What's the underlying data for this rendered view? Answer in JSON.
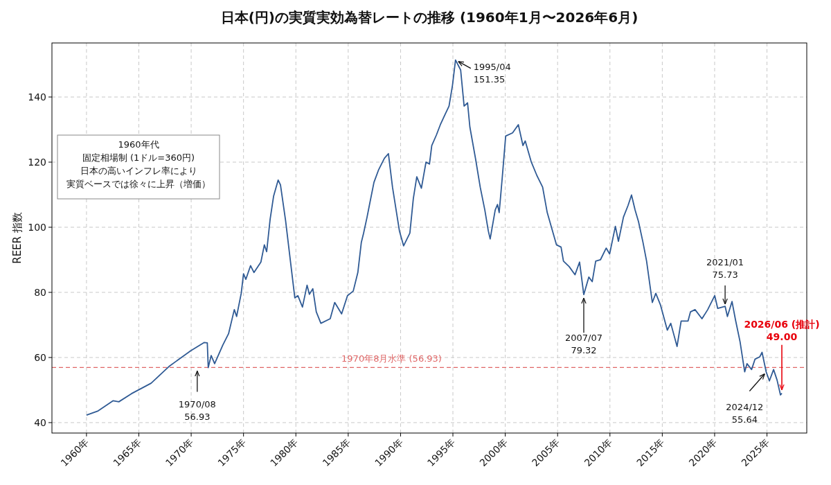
{
  "chart_data": {
    "type": "line",
    "title": "日本(円)の実質実効為替レートの推移 (1960年1月〜2026年6月)",
    "ylabel": "REER 指数",
    "x": [
      1960.0,
      1961.11,
      1962.53,
      1963.09,
      1964.3,
      1966.17,
      1967.94,
      1969.93,
      1971.25,
      1971.54,
      1971.63,
      1971.91,
      1972.24,
      1973.02,
      1973.57,
      1974.12,
      1974.34,
      1974.78,
      1975.0,
      1975.22,
      1975.67,
      1976.0,
      1976.66,
      1976.99,
      1977.21,
      1977.54,
      1977.87,
      1978.31,
      1978.53,
      1979.02,
      1979.45,
      1979.9,
      1980.19,
      1980.63,
      1981.07,
      1981.29,
      1981.62,
      1981.95,
      1982.39,
      1983.28,
      1983.71,
      1984.37,
      1984.93,
      1985.48,
      1985.92,
      1986.25,
      1986.47,
      1986.8,
      1987.02,
      1987.46,
      1987.91,
      1988.46,
      1988.84,
      1989.23,
      1989.89,
      1990.29,
      1990.89,
      1991.22,
      1991.55,
      1991.99,
      1992.43,
      1992.76,
      1992.98,
      1993.42,
      1993.8,
      1994.3,
      1994.63,
      1994.96,
      1995.25,
      1995.74,
      1996.07,
      1996.4,
      1996.62,
      1997.17,
      1997.61,
      1998.05,
      1998.38,
      1998.56,
      1999.04,
      1999.26,
      1999.42,
      1999.71,
      2000.04,
      2000.7,
      2001.25,
      2001.69,
      2001.91,
      2002.47,
      2003.02,
      2003.57,
      2004.01,
      2004.89,
      2005.33,
      2005.56,
      2006.11,
      2006.66,
      2007.1,
      2007.5,
      2007.98,
      2008.31,
      2008.64,
      2009.09,
      2009.64,
      2009.97,
      2010.52,
      2010.81,
      2011.29,
      2011.73,
      2012.06,
      2012.4,
      2012.73,
      2013.16,
      2013.5,
      2014.05,
      2014.38,
      2014.82,
      2015.48,
      2015.81,
      2016.41,
      2016.8,
      2017.46,
      2017.69,
      2018.13,
      2018.79,
      2019.34,
      2020.01,
      2020.29,
      2021.0,
      2021.22,
      2021.66,
      2021.99,
      2022.43,
      2022.87,
      2023.09,
      2023.53,
      2023.86,
      2024.31,
      2024.53,
      2024.92,
      2025.23,
      2025.63,
      2025.96,
      2026.29,
      2026.42
    ],
    "series": [
      {
        "color": "#2f5a94",
        "values": [
          42.3,
          43.6,
          46.7,
          46.4,
          48.9,
          52.1,
          57.4,
          62.0,
          64.6,
          64.5,
          56.9,
          60.6,
          58.1,
          63.8,
          67.3,
          74.7,
          72.6,
          79.7,
          85.7,
          84.0,
          88.2,
          86.1,
          89.3,
          94.6,
          92.5,
          102.4,
          109.5,
          114.5,
          113.0,
          102.0,
          90.4,
          78.3,
          79.0,
          75.5,
          82.2,
          79.4,
          81.1,
          74.0,
          70.5,
          71.9,
          76.9,
          73.4,
          79.0,
          80.4,
          86.1,
          95.3,
          98.2,
          103.1,
          106.7,
          113.8,
          117.7,
          121.2,
          122.6,
          112.3,
          98.9,
          94.3,
          98.2,
          108.8,
          115.5,
          112.0,
          120.0,
          119.4,
          125.1,
          128.3,
          131.5,
          135.0,
          137.2,
          143.6,
          151.35,
          148.3,
          137.2,
          138.2,
          130.8,
          120.9,
          112.3,
          105.3,
          98.9,
          96.4,
          105.3,
          107.0,
          104.5,
          115.1,
          128.0,
          129.0,
          131.5,
          125.1,
          126.5,
          120.2,
          115.9,
          112.3,
          104.5,
          94.6,
          93.9,
          89.6,
          87.9,
          85.4,
          89.3,
          79.32,
          84.7,
          83.3,
          89.6,
          90.0,
          93.6,
          91.8,
          100.3,
          95.7,
          103.1,
          106.7,
          109.9,
          105.3,
          101.7,
          95.3,
          89.6,
          76.9,
          79.7,
          76.2,
          68.4,
          70.5,
          63.4,
          71.2,
          71.2,
          74.0,
          74.7,
          71.9,
          74.7,
          79.0,
          75.1,
          75.73,
          72.6,
          77.2,
          71.6,
          64.8,
          55.6,
          58.1,
          56.3,
          59.5,
          60.2,
          61.6,
          55.64,
          52.8,
          56.3,
          53.1,
          48.5,
          49.0
        ]
      }
    ],
    "xlim": [
      1956.7,
      2028.8
    ],
    "ylim": [
      36.8,
      156.6
    ],
    "xticks": [
      {
        "value": 1960,
        "label": "1960年"
      },
      {
        "value": 1965,
        "label": "1965年"
      },
      {
        "value": 1970,
        "label": "1970年"
      },
      {
        "value": 1975,
        "label": "1975年"
      },
      {
        "value": 1980,
        "label": "1980年"
      },
      {
        "value": 1985,
        "label": "1985年"
      },
      {
        "value": 1990,
        "label": "1990年"
      },
      {
        "value": 1995,
        "label": "1995年"
      },
      {
        "value": 2000,
        "label": "2000年"
      },
      {
        "value": 2005,
        "label": "2005年"
      },
      {
        "value": 2010,
        "label": "2010年"
      },
      {
        "value": 2015,
        "label": "2015年"
      },
      {
        "value": 2020,
        "label": "2020年"
      },
      {
        "value": 2025,
        "label": "2025年"
      }
    ],
    "yticks": [
      40,
      60,
      80,
      100,
      120,
      140
    ],
    "grid": true,
    "ref_lines": [
      {
        "axis": "y",
        "value": 56.93,
        "label": "1970年8月水準 (56.93)",
        "color": "#e06666",
        "line_style": "dashed"
      }
    ],
    "annotations": [
      "1960年代",
      "固定相場制 (1ドル=360円)",
      "日本の高いインフレ率により",
      "実質ベースでは徐々に上昇（増価）",
      {
        "text": "1970/08\n56.93",
        "x": 1970.58,
        "y": 56.93
      },
      {
        "text": "1995/04\n151.35",
        "x": 1995.25,
        "y": 151.35
      },
      {
        "text": "2007/07\n79.32",
        "x": 2007.5,
        "y": 79.32
      },
      {
        "text": "2021/01\n75.73",
        "x": 2021.0,
        "y": 75.73
      },
      {
        "text": "2024/12\n55.64",
        "x": 2024.92,
        "y": 55.64
      },
      {
        "text": "2026/06 (推計)\n49.00",
        "x": 2026.42,
        "y": 49.0
      }
    ]
  }
}
